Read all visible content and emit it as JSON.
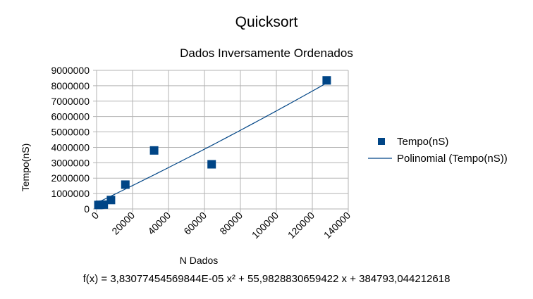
{
  "chart_data": {
    "type": "scatter",
    "title": "Quicksort",
    "subtitle": "Dados Inversamente Ordenados",
    "xlabel": "N Dados",
    "ylabel": "Tempo(nS)",
    "xlim": [
      0,
      140000
    ],
    "ylim": [
      0,
      9000000
    ],
    "x_ticks": [
      0,
      20000,
      40000,
      60000,
      80000,
      100000,
      120000,
      140000
    ],
    "y_ticks": [
      0,
      1000000,
      2000000,
      3000000,
      4000000,
      5000000,
      6000000,
      7000000,
      8000000,
      9000000
    ],
    "grid": true,
    "legend_position": "right",
    "series": [
      {
        "name": "Tempo(nS)",
        "color": "#004586",
        "points": [
          [
            1000,
            260000
          ],
          [
            2000,
            270000
          ],
          [
            4000,
            280000
          ],
          [
            8000,
            580000
          ],
          [
            16000,
            1580000
          ],
          [
            32000,
            3800000
          ],
          [
            64000,
            2900000
          ],
          [
            128000,
            8350000
          ]
        ]
      }
    ],
    "trendline": {
      "name": "Polinomial (Tempo(nS))",
      "color": "#004586",
      "coefficients": {
        "a": 3.83077454569844e-05,
        "b": 55.9828830659422,
        "c": 384793.044212618
      },
      "equation": "f(x) = 3,83077454569844E-05 x² + 55,9828830659422 x + 384793,044212618"
    }
  }
}
